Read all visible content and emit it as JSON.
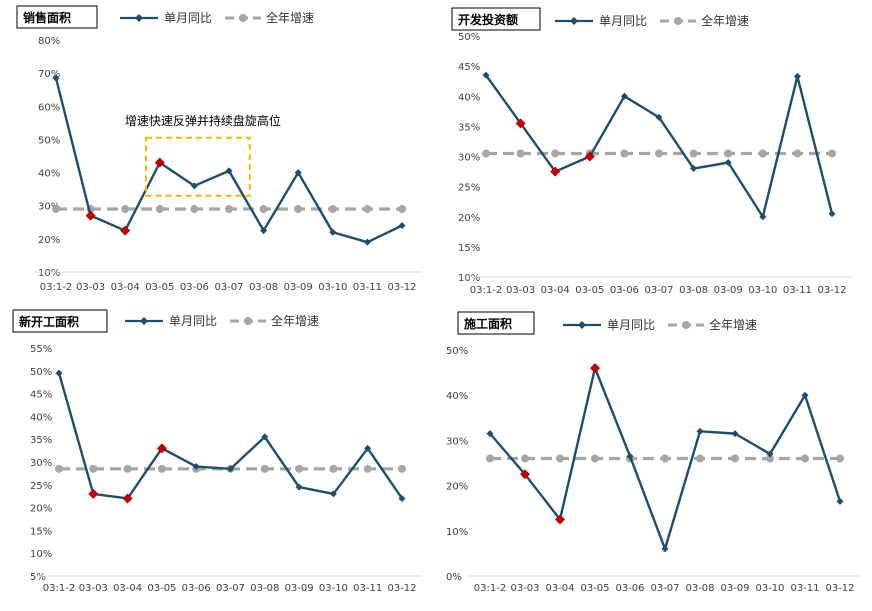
{
  "colors": {
    "monthly_line": "#1F4E6B",
    "annual_line": "#A6A6A6",
    "highlight_marker": "#C00000",
    "annotation_box": "#F5B800",
    "axis_text": "#404040"
  },
  "chart_data": [
    {
      "type": "line",
      "title": "销售面积",
      "categories": [
        "03:1-2",
        "03-03",
        "03-04",
        "03-05",
        "03-06",
        "03-07",
        "03-08",
        "03-09",
        "03-10",
        "03-11",
        "03-12"
      ],
      "ylim": [
        10,
        80
      ],
      "yticks": [
        10,
        20,
        30,
        40,
        50,
        60,
        70,
        80
      ],
      "ytick_labels": [
        "10%",
        "20%",
        "30%",
        "40%",
        "50%",
        "60%",
        "70%",
        "80%"
      ],
      "series": [
        {
          "name": "单月同比",
          "values": [
            68.5,
            27,
            22.5,
            43,
            36,
            40.5,
            22.5,
            40,
            22,
            19,
            24
          ]
        },
        {
          "name": "全年增速",
          "values": [
            29,
            29,
            29,
            29,
            29,
            29,
            29,
            29,
            29,
            29,
            29
          ]
        }
      ],
      "highlight_indices": [
        1,
        2,
        3
      ],
      "annotation": {
        "text": "增速快速反弹并持续盘旋高位",
        "x_from": 2.6,
        "x_to": 5.6,
        "y_from": 33,
        "y_to": 50.5
      },
      "grid": false,
      "legend": "top"
    },
    {
      "type": "line",
      "title": "开发投资额",
      "categories": [
        "03:1-2",
        "03-03",
        "03-04",
        "03-05",
        "03-06",
        "03-07",
        "03-08",
        "03-09",
        "03-10",
        "03-11",
        "03-12"
      ],
      "ylim": [
        10,
        50
      ],
      "yticks": [
        10,
        15,
        20,
        25,
        30,
        35,
        40,
        45,
        50
      ],
      "ytick_labels": [
        "10%",
        "15%",
        "20%",
        "25%",
        "30%",
        "35%",
        "40%",
        "45%",
        "50%"
      ],
      "series": [
        {
          "name": "单月同比",
          "values": [
            43.5,
            35.5,
            27.5,
            30,
            40,
            36.5,
            28,
            29,
            20,
            43.3,
            20.5
          ]
        },
        {
          "name": "全年增速",
          "values": [
            30.5,
            30.5,
            30.5,
            30.5,
            30.5,
            30.5,
            30.5,
            30.5,
            30.5,
            30.5,
            30.5
          ]
        }
      ],
      "highlight_indices": [
        1,
        2,
        3
      ],
      "grid": false,
      "legend": "top"
    },
    {
      "type": "line",
      "title": "新开工面积",
      "categories": [
        "03:1-2",
        "03-03",
        "03-04",
        "03-05",
        "03-06",
        "03-07",
        "03-08",
        "03-09",
        "03-10",
        "03-11",
        "03-12"
      ],
      "ylim": [
        5,
        55
      ],
      "yticks": [
        5,
        10,
        15,
        20,
        25,
        30,
        35,
        40,
        45,
        50,
        55
      ],
      "ytick_labels": [
        "5%",
        "10%",
        "15%",
        "20%",
        "25%",
        "30%",
        "35%",
        "40%",
        "45%",
        "50%",
        "55%"
      ],
      "series": [
        {
          "name": "单月同比",
          "values": [
            49.5,
            23,
            22,
            33,
            29,
            28.5,
            35.5,
            24.5,
            23,
            33,
            22
          ]
        },
        {
          "name": "全年增速",
          "values": [
            28.5,
            28.5,
            28.5,
            28.5,
            28.5,
            28.5,
            28.5,
            28.5,
            28.5,
            28.5,
            28.5
          ]
        }
      ],
      "highlight_indices": [
        1,
        2,
        3
      ],
      "grid": false,
      "legend": "top"
    },
    {
      "type": "line",
      "title": "施工面积",
      "categories": [
        "03:1-2",
        "03-03",
        "03-04",
        "03-05",
        "03-06",
        "03-07",
        "03-08",
        "03-09",
        "03-10",
        "03-11",
        "03-12"
      ],
      "ylim": [
        0,
        50
      ],
      "yticks": [
        0,
        10,
        20,
        30,
        40,
        50
      ],
      "ytick_labels": [
        "0%",
        "10%",
        "20%",
        "30%",
        "40%",
        "50%"
      ],
      "series": [
        {
          "name": "单月同比",
          "values": [
            31.5,
            22.5,
            12.5,
            46,
            26.5,
            6,
            32,
            31.5,
            27,
            40,
            16.5
          ]
        },
        {
          "name": "全年增速",
          "values": [
            26,
            26,
            26,
            26,
            26,
            26,
            26,
            26,
            26,
            26,
            26
          ]
        }
      ],
      "highlight_indices": [
        1,
        2,
        3
      ],
      "grid": false,
      "legend": "top"
    }
  ]
}
